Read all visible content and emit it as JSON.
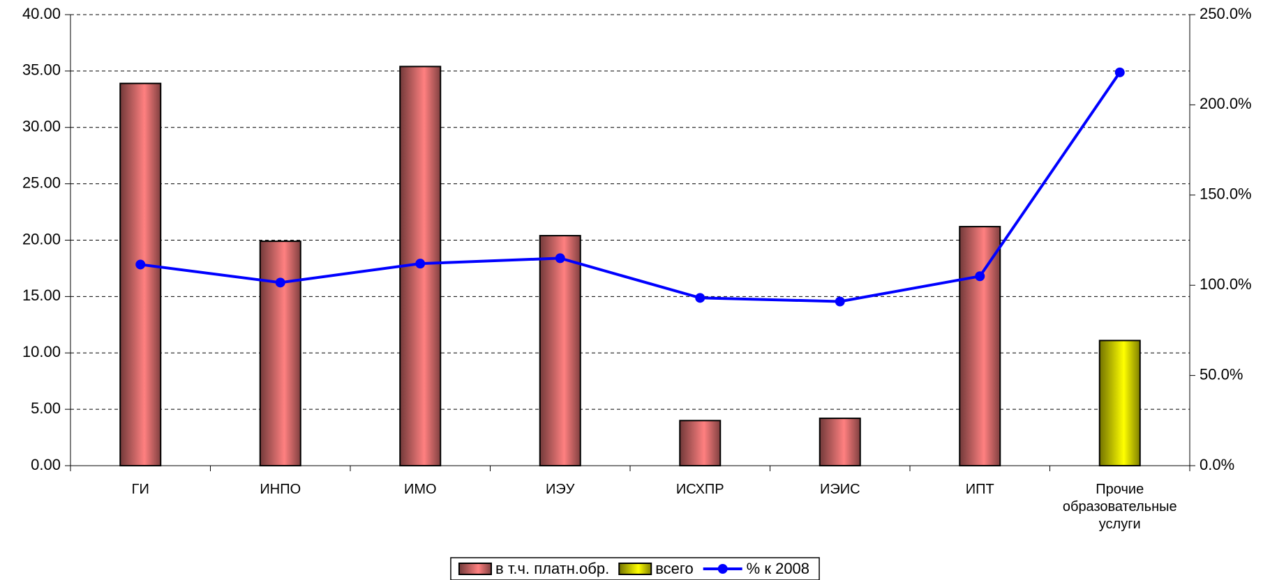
{
  "chart_data": {
    "type": "bar_line",
    "categories": [
      "ГИ",
      "ИНПО",
      "ИМО",
      "ИЭУ",
      "ИСХПР",
      "ИЭИС",
      "ИПТ",
      "Прочие образовательные услуги"
    ],
    "series": [
      {
        "name": "в т.ч. платн.обр.",
        "color": "#ff8080",
        "type": "bar",
        "values": [
          33.9,
          19.9,
          35.4,
          20.4,
          4.0,
          4.2,
          21.2,
          null
        ]
      },
      {
        "name": "всего",
        "color": "#ffff00",
        "type": "bar",
        "values": [
          null,
          null,
          null,
          null,
          null,
          null,
          null,
          11.1
        ]
      },
      {
        "name": "% к 2008",
        "color": "#0000ff",
        "type": "line",
        "axis": "y2",
        "values": [
          111.5,
          101.5,
          112,
          115,
          93,
          91,
          105,
          218
        ]
      }
    ],
    "ylim": [
      0,
      40
    ],
    "yticks": [
      {
        "value": 0,
        "label": "0.00"
      },
      {
        "value": 5,
        "label": "5.00"
      },
      {
        "value": 10,
        "label": "10.00"
      },
      {
        "value": 15,
        "label": "15.00"
      },
      {
        "value": 20,
        "label": "20.00"
      },
      {
        "value": 25,
        "label": "25.00"
      },
      {
        "value": 30,
        "label": "30.00"
      },
      {
        "value": 35,
        "label": "35.00"
      },
      {
        "value": 40,
        "label": "40.00"
      }
    ],
    "y2lim": [
      0,
      250
    ],
    "y2ticks": [
      {
        "value": 0,
        "label": "0.0%"
      },
      {
        "value": 50,
        "label": "50.0%"
      },
      {
        "value": 100,
        "label": "100.0%"
      },
      {
        "value": 150,
        "label": "150.0%"
      },
      {
        "value": 200,
        "label": "200.0%"
      },
      {
        "value": 250,
        "label": "250.0%"
      }
    ],
    "grid": true,
    "legend": "bottom"
  }
}
